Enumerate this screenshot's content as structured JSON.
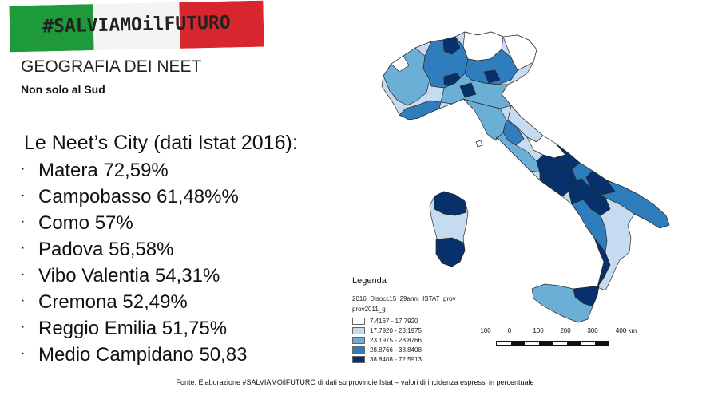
{
  "banner": {
    "text": "#SALVIAMOilFUTURO",
    "colors": {
      "green": "#1f9a3a",
      "white": "#f4f4f4",
      "red": "#d8262e"
    }
  },
  "title": "GEOGRAFIA DEI NEET",
  "subtitle": "Non solo al Sud",
  "list_heading": "Le Neet’s City (dati Istat 2016):",
  "cities": [
    {
      "label": "Matera 72,59%"
    },
    {
      "label": "Campobasso 61,48%%"
    },
    {
      "label": "Como 57%"
    },
    {
      "label": "Padova 56,58%"
    },
    {
      "label": "Vibo Valentia 54,31%"
    },
    {
      "label": "Cremona 52,49%"
    },
    {
      "label": "Reggio Emilia 51,75%"
    },
    {
      "label": "Medio Campidano 50,83"
    }
  ],
  "bullet": "·",
  "legend": {
    "title": "Legenda",
    "layer": "2016_Disocc15_29anni_ISTAT_prov",
    "field": "prov2011_g",
    "classes": [
      {
        "range": "7.4167 - 17.7920",
        "color": "#ffffff"
      },
      {
        "range": "17.7920 - 23.1975",
        "color": "#c6dbef"
      },
      {
        "range": "23.1975 - 28.8766",
        "color": "#6baed6"
      },
      {
        "range": "28.8766 - 38.8408",
        "color": "#2f7dbd"
      },
      {
        "range": "38.8408 - 72.5913",
        "color": "#08306b"
      }
    ]
  },
  "scale_bar": {
    "labels": [
      "100",
      "0",
      "100",
      "200",
      "300",
      "400 km"
    ]
  },
  "footer": "Fonte: Elaborazione  #SALVIAMOilFUTURO di dati su provincie Istat – valori di incidenza espressi in percentuale"
}
